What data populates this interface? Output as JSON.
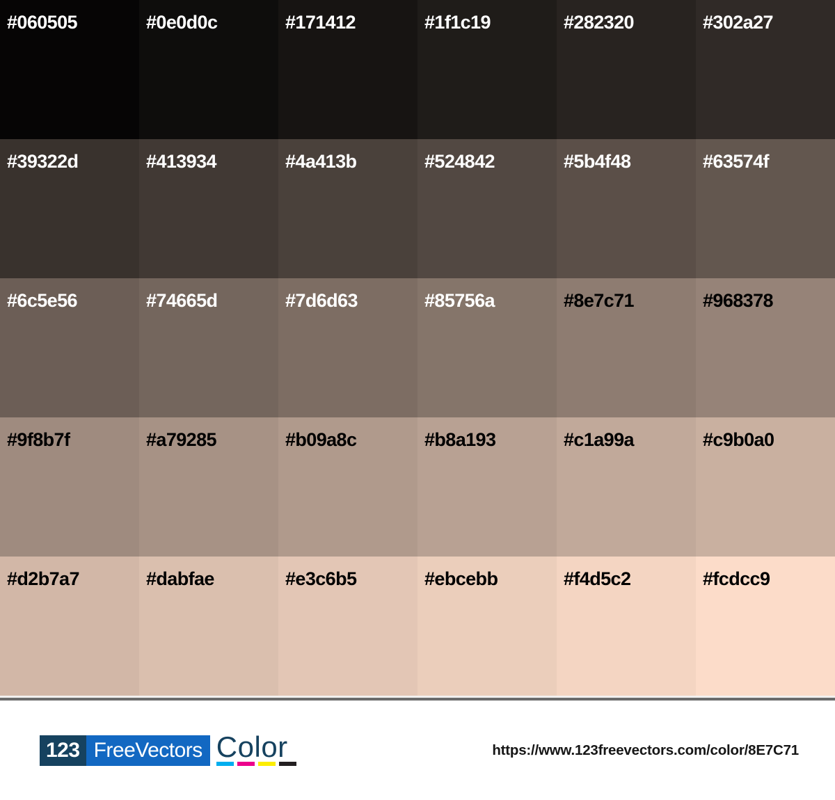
{
  "palette": {
    "base_color": "8E7C71",
    "columns": 6,
    "rows": 5,
    "swatches": [
      {
        "hex": "#060505",
        "fg": "#ffffff"
      },
      {
        "hex": "#0e0d0c",
        "fg": "#ffffff"
      },
      {
        "hex": "#171412",
        "fg": "#ffffff"
      },
      {
        "hex": "#1f1c19",
        "fg": "#ffffff"
      },
      {
        "hex": "#282320",
        "fg": "#ffffff"
      },
      {
        "hex": "#302a27",
        "fg": "#ffffff"
      },
      {
        "hex": "#39322d",
        "fg": "#ffffff"
      },
      {
        "hex": "#413934",
        "fg": "#ffffff"
      },
      {
        "hex": "#4a413b",
        "fg": "#ffffff"
      },
      {
        "hex": "#524842",
        "fg": "#ffffff"
      },
      {
        "hex": "#5b4f48",
        "fg": "#ffffff"
      },
      {
        "hex": "#63574f",
        "fg": "#ffffff"
      },
      {
        "hex": "#6c5e56",
        "fg": "#ffffff"
      },
      {
        "hex": "#74665d",
        "fg": "#ffffff"
      },
      {
        "hex": "#7d6d63",
        "fg": "#ffffff"
      },
      {
        "hex": "#85756a",
        "fg": "#ffffff"
      },
      {
        "hex": "#8e7c71",
        "fg": "#000000"
      },
      {
        "hex": "#968378",
        "fg": "#000000"
      },
      {
        "hex": "#9f8b7f",
        "fg": "#000000"
      },
      {
        "hex": "#a79285",
        "fg": "#000000"
      },
      {
        "hex": "#b09a8c",
        "fg": "#000000"
      },
      {
        "hex": "#b8a193",
        "fg": "#000000"
      },
      {
        "hex": "#c1a99a",
        "fg": "#000000"
      },
      {
        "hex": "#c9b0a0",
        "fg": "#000000"
      },
      {
        "hex": "#d2b7a7",
        "fg": "#000000"
      },
      {
        "hex": "#dabfae",
        "fg": "#000000"
      },
      {
        "hex": "#e3c6b5",
        "fg": "#000000"
      },
      {
        "hex": "#ebcebb",
        "fg": "#000000"
      },
      {
        "hex": "#f4d5c2",
        "fg": "#000000"
      },
      {
        "hex": "#fcdcc9",
        "fg": "#000000"
      }
    ]
  },
  "footer": {
    "logo": {
      "number": "123",
      "name": "FreeVectors",
      "suffix": "Color",
      "navy": "#16425f",
      "blue": "#1268c2",
      "cmyk_colors": [
        "#00aeef",
        "#ec008c",
        "#fced00",
        "#231f20"
      ],
      "cmyk_names": [
        "cyan-bar",
        "magenta-bar",
        "yellow-bar",
        "black-bar"
      ]
    },
    "url": "https://www.123freevectors.com/color/8E7C71"
  }
}
